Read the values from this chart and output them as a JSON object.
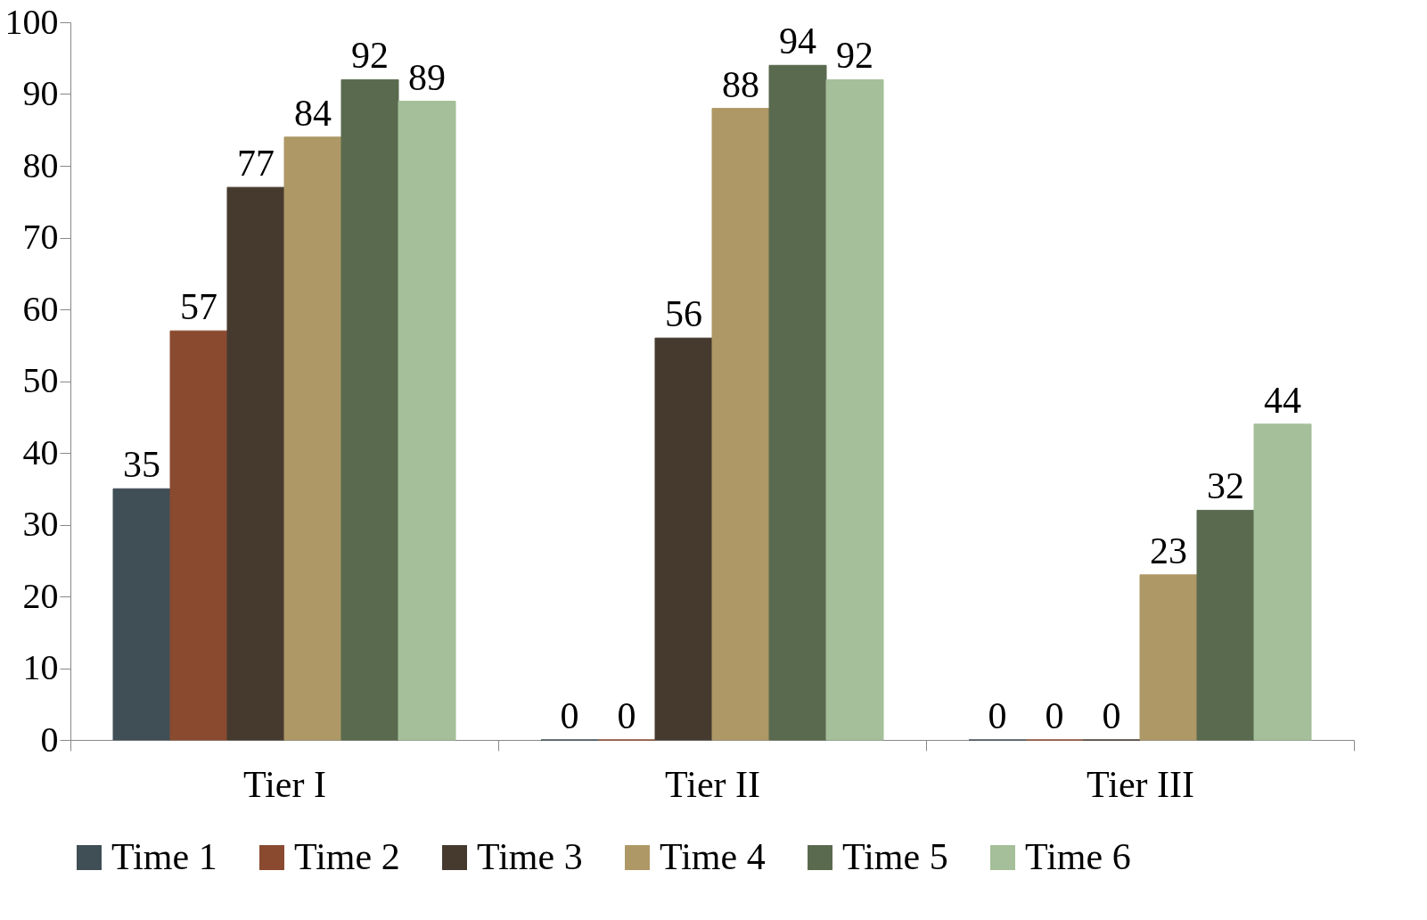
{
  "chart_data": {
    "type": "bar",
    "categories": [
      "Tier I",
      "Tier II",
      "Tier III"
    ],
    "series": [
      {
        "name": "Time 1",
        "color": "#404e56",
        "values": [
          35,
          0,
          0
        ]
      },
      {
        "name": "Time 2",
        "color": "#8a4a30",
        "values": [
          57,
          0,
          0
        ]
      },
      {
        "name": "Time 3",
        "color": "#463a2f",
        "values": [
          77,
          56,
          0
        ]
      },
      {
        "name": "Time 4",
        "color": "#ad9866",
        "values": [
          84,
          88,
          23
        ]
      },
      {
        "name": "Time 5",
        "color": "#5a6a4e",
        "values": [
          92,
          94,
          32
        ]
      },
      {
        "name": "Time 6",
        "color": "#a4bf99",
        "values": [
          89,
          92,
          44
        ]
      }
    ],
    "ylim": [
      0,
      100
    ],
    "yticks": [
      0,
      10,
      20,
      30,
      40,
      50,
      60,
      70,
      80,
      90,
      100
    ],
    "data_labels": true,
    "grid": false,
    "legend": "bottom"
  }
}
